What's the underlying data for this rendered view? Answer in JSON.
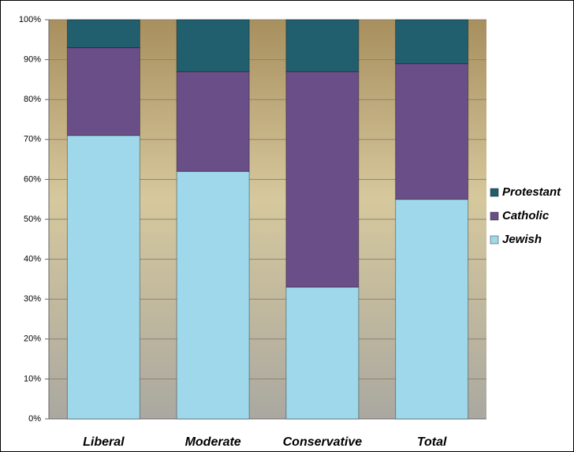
{
  "chart_data": {
    "type": "stacked_bar",
    "categories": [
      "Liberal",
      "Moderate",
      "Conservative",
      "Total"
    ],
    "series": [
      {
        "name": "Jewish",
        "color": "#9fd8ea",
        "values": [
          71,
          62,
          33,
          55
        ]
      },
      {
        "name": "Catholic",
        "color": "#694e87",
        "values": [
          22,
          25,
          54,
          34
        ]
      },
      {
        "name": "Protestant",
        "color": "#215e6e",
        "values": [
          7,
          13,
          13,
          11
        ]
      }
    ],
    "ylim": [
      0,
      100
    ],
    "yticks": [
      {
        "value": 0,
        "label": "0%"
      },
      {
        "value": 10,
        "label": "10%"
      },
      {
        "value": 20,
        "label": "20%"
      },
      {
        "value": 30,
        "label": "30%"
      },
      {
        "value": 40,
        "label": "40%"
      },
      {
        "value": 50,
        "label": "50%"
      },
      {
        "value": 60,
        "label": "60%"
      },
      {
        "value": 70,
        "label": "70%"
      },
      {
        "value": 80,
        "label": "80%"
      },
      {
        "value": 90,
        "label": "90%"
      },
      {
        "value": 100,
        "label": "100%"
      }
    ],
    "grid": true,
    "legend": "right"
  }
}
